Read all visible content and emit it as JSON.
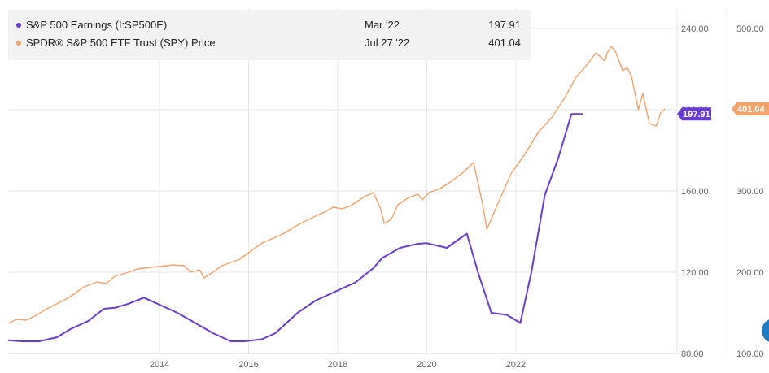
{
  "chart_data": {
    "type": "line",
    "x_ticks": [
      "2014",
      "2016",
      "2018",
      "2020",
      "2022"
    ],
    "axes": {
      "left_ylim": [
        80,
        250
      ],
      "left_ticks": [
        "80.00",
        "120.00",
        "160.00",
        "200.00",
        "240.00"
      ],
      "right_ylim": [
        100,
        525
      ],
      "right_ticks": [
        "100.00",
        "200.00",
        "300.00",
        "400.00",
        "500.00"
      ]
    },
    "series": [
      {
        "name": "S&P 500 Earnings (I:SP500E)",
        "axis": "left",
        "color": "#6a3bd1",
        "last_date": "Mar '22",
        "last_value": "197.91",
        "label": "197.91",
        "points": [
          [
            2012.6,
            86.5
          ],
          [
            2012.9,
            86
          ],
          [
            2013.3,
            86
          ],
          [
            2013.7,
            88
          ],
          [
            2014.0,
            92
          ],
          [
            2014.4,
            96
          ],
          [
            2014.75,
            102
          ],
          [
            2015.0,
            102.5
          ],
          [
            2015.3,
            104.5
          ],
          [
            2015.65,
            107.5
          ],
          [
            2016.0,
            104
          ],
          [
            2016.4,
            100
          ],
          [
            2016.8,
            95
          ],
          [
            2017.2,
            90
          ],
          [
            2017.6,
            86
          ],
          [
            2017.9,
            86
          ],
          [
            2018.3,
            87
          ],
          [
            2018.6,
            90
          ],
          [
            2019.1,
            100
          ],
          [
            2019.5,
            106
          ],
          [
            2019.9,
            110
          ],
          [
            2020.4,
            115
          ],
          [
            2020.8,
            122
          ],
          [
            2021.0,
            127
          ],
          [
            2021.4,
            132
          ],
          [
            2021.8,
            134
          ],
          [
            2022.0,
            134.3
          ],
          [
            2022.45,
            132
          ],
          [
            2022.9,
            139
          ],
          [
            2023.15,
            120
          ],
          [
            2023.45,
            100
          ],
          [
            2023.8,
            99
          ],
          [
            2024.1,
            95
          ],
          [
            2024.35,
            120
          ],
          [
            2024.65,
            158
          ],
          [
            2024.95,
            176
          ],
          [
            2025.25,
            197.91
          ],
          [
            2025.5,
            197.91
          ]
        ]
      },
      {
        "name": "SPDR® S&P 500 ETF Trust (SPY) Price",
        "axis": "right",
        "color": "#f4a36a",
        "last_date": "Jul 27 '22",
        "last_value": "401.04",
        "label": "401.04",
        "points": [
          [
            2012.6,
            137
          ],
          [
            2012.8,
            142
          ],
          [
            2013.0,
            141
          ],
          [
            2013.2,
            146
          ],
          [
            2013.5,
            156
          ],
          [
            2013.8,
            164
          ],
          [
            2014.0,
            170
          ],
          [
            2014.3,
            182
          ],
          [
            2014.6,
            188
          ],
          [
            2014.8,
            186
          ],
          [
            2015.0,
            195
          ],
          [
            2015.3,
            200
          ],
          [
            2015.5,
            204
          ],
          [
            2015.8,
            206
          ],
          [
            2016.0,
            207
          ],
          [
            2016.3,
            209
          ],
          [
            2016.55,
            208
          ],
          [
            2016.7,
            200
          ],
          [
            2016.9,
            203
          ],
          [
            2017.0,
            193
          ],
          [
            2017.2,
            200
          ],
          [
            2017.4,
            208
          ],
          [
            2017.6,
            212
          ],
          [
            2017.8,
            216
          ],
          [
            2018.0,
            224
          ],
          [
            2018.3,
            236
          ],
          [
            2018.6,
            243
          ],
          [
            2018.8,
            248
          ],
          [
            2019.0,
            255
          ],
          [
            2019.2,
            261
          ],
          [
            2019.5,
            269
          ],
          [
            2019.7,
            274
          ],
          [
            2019.9,
            280
          ],
          [
            2020.1,
            278
          ],
          [
            2020.3,
            282
          ],
          [
            2020.6,
            293
          ],
          [
            2020.8,
            298
          ],
          [
            2020.95,
            280
          ],
          [
            2021.05,
            260
          ],
          [
            2021.2,
            265
          ],
          [
            2021.35,
            283
          ],
          [
            2021.6,
            292
          ],
          [
            2021.8,
            296
          ],
          [
            2021.9,
            289
          ],
          [
            2022.05,
            298
          ],
          [
            2022.3,
            303
          ],
          [
            2022.5,
            310
          ],
          [
            2022.8,
            322
          ],
          [
            2023.05,
            335
          ],
          [
            2023.25,
            285
          ],
          [
            2023.35,
            253
          ],
          [
            2023.6,
            285
          ],
          [
            2023.9,
            322
          ],
          [
            2024.2,
            345
          ],
          [
            2024.5,
            372
          ],
          [
            2024.8,
            390
          ],
          [
            2025.1,
            415
          ],
          [
            2025.35,
            440
          ],
          [
            2025.55,
            452
          ],
          [
            2025.8,
            470
          ],
          [
            2025.9,
            465
          ],
          [
            2026.0,
            460
          ],
          [
            2026.05,
            470
          ],
          [
            2026.15,
            478
          ],
          [
            2026.25,
            470
          ],
          [
            2026.4,
            448
          ],
          [
            2026.5,
            452
          ],
          [
            2026.6,
            440
          ],
          [
            2026.75,
            400
          ],
          [
            2026.85,
            420
          ],
          [
            2027.0,
            383
          ],
          [
            2027.15,
            380
          ],
          [
            2027.25,
            396
          ],
          [
            2027.35,
            401.04
          ]
        ]
      }
    ]
  }
}
